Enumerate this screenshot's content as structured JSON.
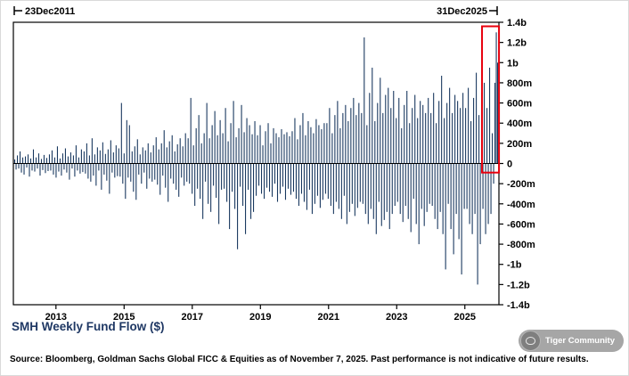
{
  "header": {
    "range_start": "23Dec2011",
    "range_end": "31Dec2025"
  },
  "footer": {
    "title": "SMH Weekly Fund Flow ($)",
    "source": "Source: Bloomberg, Goldman Sachs Global FICC & Equities as of November 7, 2025. Past performance is not indicative of future results."
  },
  "watermark": {
    "label": "Tiger Community"
  },
  "colors": {
    "bar": "#17375e",
    "highlight": "#e8000d",
    "title": "#1f3864",
    "axis": "#000000"
  },
  "chart_data": {
    "type": "bar",
    "title": "SMH Weekly Fund Flow ($)",
    "unit": "millions USD (values_millions are $m; 1000 = 1b)",
    "x_range": [
      "23Dec2011",
      "31Dec2025"
    ],
    "x_axis_start": 2011.75,
    "x_axis_end": 2026.0,
    "x_tick_years": [
      2013,
      2015,
      2017,
      2019,
      2021,
      2023,
      2025
    ],
    "ylim_millions": [
      -1400,
      1400
    ],
    "y_ticks": [
      {
        "label": "1.4b",
        "value": 1400
      },
      {
        "label": "1.2b",
        "value": 1200
      },
      {
        "label": "1b",
        "value": 1000
      },
      {
        "label": "800m",
        "value": 800
      },
      {
        "label": "600m",
        "value": 600
      },
      {
        "label": "400m",
        "value": 400
      },
      {
        "label": "200m",
        "value": 200
      },
      {
        "label": "0",
        "value": 0
      },
      {
        "label": "-200m",
        "value": -200
      },
      {
        "label": "-400m",
        "value": -400
      },
      {
        "label": "-600m",
        "value": -600
      },
      {
        "label": "-800m",
        "value": -800
      },
      {
        "label": "-1b",
        "value": -1000
      },
      {
        "label": "-1.2b",
        "value": -1200
      },
      {
        "label": "-1.4b",
        "value": -1400
      }
    ],
    "grid": false,
    "legend": "none",
    "highlight_region": {
      "start_index": 352,
      "end_index": 361,
      "y_top": 1360,
      "y_bottom": -90,
      "color": "#e8000d",
      "note": "red box around most recent large inflow spike (~1.3b)"
    },
    "values_millions": [
      40,
      -60,
      80,
      -50,
      120,
      -90,
      60,
      -110,
      70,
      -40,
      90,
      -130,
      50,
      -70,
      140,
      -80,
      60,
      -50,
      100,
      -120,
      45,
      -65,
      85,
      -95,
      55,
      -75,
      90,
      -70,
      130,
      -110,
      60,
      -140,
      170,
      -80,
      50,
      -120,
      100,
      -60,
      150,
      -90,
      70,
      -160,
      110,
      -50,
      80,
      -130,
      180,
      -70,
      60,
      -100,
      140,
      -85,
      120,
      -100,
      200,
      -150,
      80,
      -180,
      250,
      -120,
      90,
      -220,
      160,
      -70,
      130,
      -260,
      210,
      -110,
      95,
      -170,
      140,
      -300,
      230,
      -90,
      110,
      -140,
      180,
      -125,
      150,
      -130,
      600,
      -200,
      100,
      -350,
      430,
      -140,
      380,
      -180,
      120,
      -280,
      170,
      -360,
      240,
      -110,
      90,
      -200,
      160,
      -90,
      130,
      -250,
      200,
      -150,
      110,
      -180,
      180,
      -160,
      260,
      -210,
      140,
      -310,
      200,
      -120,
      330,
      -240,
      160,
      -380,
      220,
      -150,
      280,
      -200,
      120,
      -260,
      190,
      -330,
      250,
      -140,
      170,
      -220,
      300,
      -180,
      250,
      -200,
      650,
      -300,
      180,
      -420,
      350,
      -250,
      480,
      -350,
      200,
      -550,
      300,
      -180,
      600,
      -400,
      250,
      -480,
      380,
      -220,
      520,
      -340,
      280,
      -600,
      430,
      -260,
      300,
      -250,
      550,
      -380,
      220,
      -650,
      400,
      -280,
      620,
      -450,
      260,
      -850,
      350,
      -230,
      580,
      -420,
      310,
      -700,
      450,
      -260,
      380,
      -550,
      290,
      -480,
      420,
      -320,
      280,
      -220,
      380,
      -300,
      180,
      -350,
      320,
      -240,
      400,
      -280,
      200,
      -330,
      350,
      -200,
      300,
      -380,
      260,
      -300,
      340,
      -230,
      290,
      -360,
      310,
      -250,
      270,
      -310,
      320,
      -280,
      450,
      -350,
      240,
      -420,
      380,
      -300,
      500,
      -380,
      280,
      -460,
      420,
      -260,
      360,
      -500,
      300,
      -400,
      440,
      -320,
      380,
      -440,
      340,
      -360,
      400,
      -300,
      400,
      -350,
      550,
      -420,
      300,
      -500,
      480,
      -380,
      620,
      -450,
      350,
      -550,
      500,
      -320,
      580,
      -600,
      420,
      -480,
      550,
      -400,
      650,
      -520,
      480,
      -440,
      600,
      -380,
      500,
      -400,
      1250,
      -500,
      380,
      -600,
      700,
      -450,
      950,
      -550,
      420,
      -700,
      600,
      -380,
      850,
      -620,
      500,
      -560,
      680,
      -480,
      750,
      -650,
      550,
      -500,
      720,
      -420,
      450,
      -380,
      650,
      -500,
      350,
      -580,
      580,
      -420,
      720,
      -550,
      400,
      -680,
      550,
      -350,
      680,
      -600,
      450,
      -800,
      620,
      -450,
      580,
      -620,
      500,
      -480,
      650,
      -400,
      500,
      -420,
      700,
      -550,
      400,
      -650,
      620,
      -480,
      870,
      -700,
      450,
      -1050,
      600,
      -400,
      750,
      -650,
      500,
      -900,
      680,
      -500,
      620,
      -750,
      550,
      -1100,
      700,
      -450,
      550,
      -450,
      750,
      -600,
      420,
      -700,
      650,
      -500,
      900,
      -1200,
      480,
      -800,
      700,
      -450,
      800,
      -700,
      550,
      -600,
      950,
      -500,
      300,
      -200,
      800,
      1300,
      1000,
      450
    ]
  }
}
